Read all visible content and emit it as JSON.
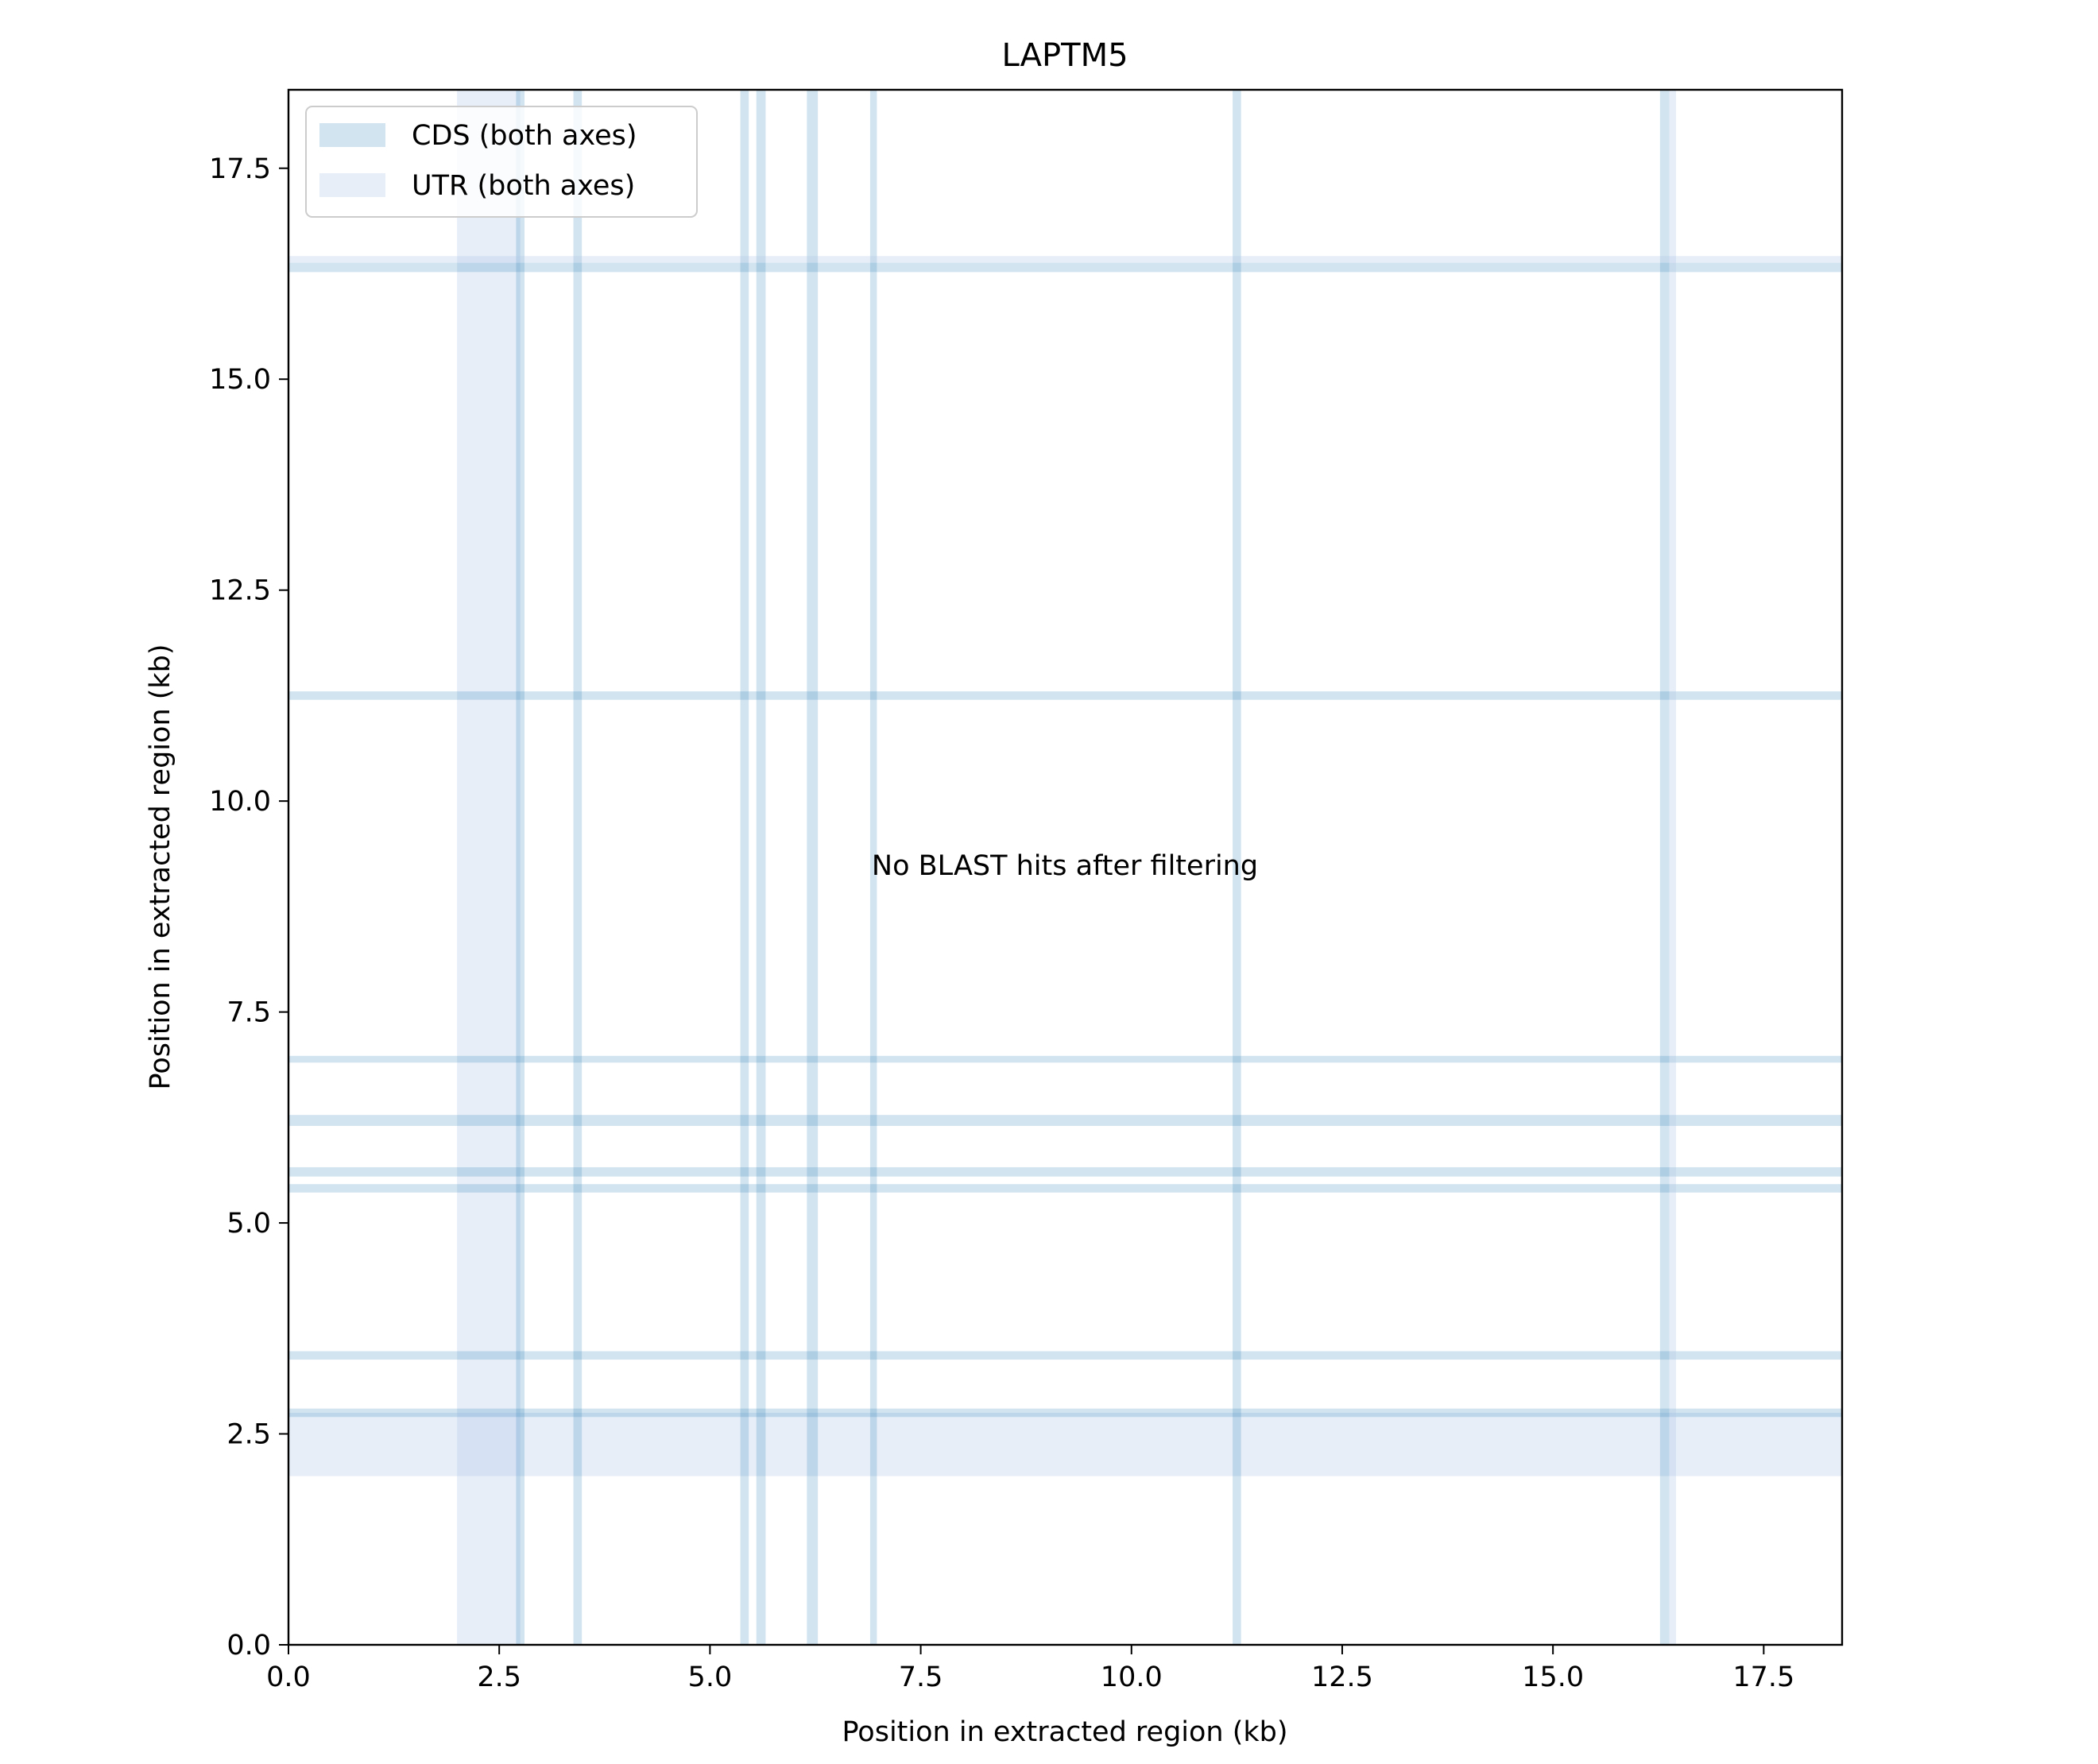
{
  "chart_data": {
    "type": "dotplot",
    "title": "LAPTM5",
    "xlabel": "Position in extracted region (kb)",
    "ylabel": "Position in extracted region (kb)",
    "xlim": [
      0,
      18.43
    ],
    "ylim": [
      0,
      18.43
    ],
    "xticks": [
      0.0,
      2.5,
      5.0,
      7.5,
      10.0,
      12.5,
      15.0,
      17.5
    ],
    "yticks": [
      0.0,
      2.5,
      5.0,
      7.5,
      10.0,
      12.5,
      15.0,
      17.5
    ],
    "tick_labels": [
      "0.0",
      "2.5",
      "5.0",
      "7.5",
      "10.0",
      "12.5",
      "15.0",
      "17.5"
    ],
    "annotation": "No BLAST hits after filtering",
    "legend": {
      "position": "upper-left",
      "entries": [
        {
          "label": "CDS (both axes)",
          "kind": "CDS"
        },
        {
          "label": "UTR (both axes)",
          "kind": "UTR"
        }
      ]
    },
    "regions": [
      {
        "kind": "UTR",
        "start": 2.0,
        "end": 2.75
      },
      {
        "kind": "CDS",
        "start": 2.7,
        "end": 2.8
      },
      {
        "kind": "CDS",
        "start": 3.38,
        "end": 3.48
      },
      {
        "kind": "CDS",
        "start": 5.36,
        "end": 5.46
      },
      {
        "kind": "CDS",
        "start": 5.55,
        "end": 5.66
      },
      {
        "kind": "CDS",
        "start": 6.15,
        "end": 6.28
      },
      {
        "kind": "CDS",
        "start": 6.9,
        "end": 6.98
      },
      {
        "kind": "CDS",
        "start": 11.2,
        "end": 11.3
      },
      {
        "kind": "CDS",
        "start": 16.27,
        "end": 16.38
      },
      {
        "kind": "UTR",
        "start": 16.38,
        "end": 16.46
      }
    ],
    "colors": {
      "CDS": "#1f77b4",
      "UTR": "#aec7e8",
      "cds_opacity": 0.2,
      "utr_opacity": 0.3,
      "axes": "#000000",
      "legend_border": "#cccccc"
    },
    "grid": false
  }
}
